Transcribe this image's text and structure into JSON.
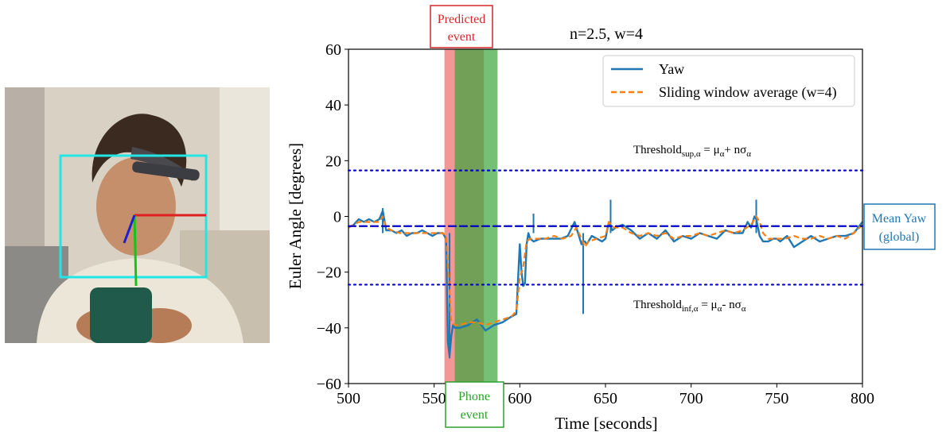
{
  "photo": {
    "alt": "Person wearing EEG headband looking down at a phone with head-pose axes and face bounding box",
    "colors": {
      "face_box": "#22e6e6",
      "axis_x": "#e02020",
      "axis_y": "#16c416",
      "axis_z": "#1f1fd0",
      "phone": "#1f5a4a"
    }
  },
  "chart_data": {
    "type": "line",
    "title": "n=2.5, w=4",
    "xlabel": "Time [seconds]",
    "ylabel": "Euler Angle [degrees]",
    "xlim": [
      500,
      800
    ],
    "ylim": [
      -60,
      60
    ],
    "xticks": [
      500,
      550,
      600,
      650,
      700,
      750,
      800
    ],
    "xtick_labels": [
      "500",
      "550",
      "600",
      "650",
      "700",
      "750",
      "800"
    ],
    "yticks": [
      -60,
      -40,
      -20,
      0,
      20,
      40,
      60
    ],
    "ytick_labels": [
      "−60",
      "−40",
      "−20",
      "0",
      "20",
      "40",
      "60"
    ],
    "grid": false,
    "legend_position": "top-right",
    "series": [
      {
        "name": "Yaw",
        "style": "solid",
        "color": "#1f77b4",
        "x": [
          500,
          503,
          506,
          509,
          512,
          515,
          518,
          520,
          522,
          525,
          528,
          531,
          534,
          537,
          540,
          543,
          546,
          549,
          552,
          555,
          557,
          558,
          559,
          560,
          561,
          562,
          565,
          570,
          575,
          580,
          585,
          590,
          595,
          598,
          600,
          601,
          602,
          603,
          604,
          605,
          606,
          608,
          612,
          616,
          620,
          624,
          628,
          632,
          636,
          637,
          638,
          639,
          640,
          642,
          645,
          648,
          650,
          652,
          654,
          656,
          660,
          665,
          670,
          675,
          680,
          685,
          690,
          695,
          700,
          705,
          710,
          715,
          720,
          725,
          730,
          733,
          735,
          737,
          738,
          740,
          742,
          745,
          748,
          750,
          752,
          756,
          760,
          765,
          770,
          775,
          780,
          785,
          790,
          795,
          800
        ],
        "y": [
          -4,
          -3,
          -1,
          -2,
          -1,
          -2,
          -1,
          2,
          -5,
          -5,
          -6,
          -5,
          -7,
          -6,
          -6,
          -5,
          -6,
          -7,
          -6,
          -6,
          -8,
          -45,
          -50,
          -43,
          -39,
          -40,
          -40,
          -39,
          -37,
          -41,
          -39,
          -38,
          -36,
          -35,
          -10,
          -20,
          -25,
          -24,
          -10,
          -6,
          -8,
          -9,
          -8,
          -8,
          -8,
          -8,
          -7,
          -2,
          -10,
          -9,
          -9,
          -10,
          -9,
          -7,
          -8,
          -9,
          -8,
          -2,
          -5,
          -4,
          -3,
          -5,
          -8,
          -6,
          -8,
          -5,
          -9,
          -7,
          -8,
          -6,
          -7,
          -8,
          -5,
          -6,
          -6,
          -2,
          -4,
          0,
          -1,
          -7,
          -9,
          -9,
          -8,
          -8,
          -9,
          -7,
          -11,
          -9,
          -7,
          -9,
          -8,
          -7,
          -7,
          -6,
          -2
        ],
        "spikes": [
          {
            "x": 520,
            "y": 3
          },
          {
            "x": 559,
            "y": -51
          },
          {
            "x": 608,
            "y": 1
          },
          {
            "x": 637,
            "y": -35
          },
          {
            "x": 653,
            "y": 6
          },
          {
            "x": 738,
            "y": 6
          }
        ]
      },
      {
        "name": "Sliding window average (w=4)",
        "style": "dashed",
        "color": "#ff7f0e",
        "x": [
          500,
          506,
          512,
          518,
          520,
          522,
          525,
          530,
          535,
          540,
          545,
          550,
          555,
          557,
          560,
          562,
          565,
          570,
          575,
          580,
          585,
          590,
          595,
          598,
          600,
          602,
          604,
          606,
          610,
          615,
          620,
          625,
          630,
          633,
          636,
          638,
          640,
          645,
          650,
          652,
          655,
          660,
          665,
          670,
          675,
          680,
          685,
          690,
          695,
          700,
          705,
          710,
          715,
          720,
          725,
          730,
          735,
          738,
          740,
          742,
          745,
          750,
          755,
          760,
          765,
          770,
          775,
          780,
          785,
          790,
          795,
          800
        ],
        "y": [
          -4,
          -2,
          -2,
          -2,
          0,
          -4,
          -5,
          -6,
          -6,
          -6,
          -6,
          -6,
          -6,
          -7,
          -38,
          -39,
          -39,
          -38,
          -38,
          -39,
          -38,
          -37,
          -36,
          -34,
          -22,
          -18,
          -9,
          -8,
          -8,
          -8,
          -7,
          -8,
          -7,
          -4,
          -8,
          -11,
          -9,
          -8,
          -7,
          -2,
          -4,
          -4,
          -6,
          -7,
          -6,
          -7,
          -6,
          -8,
          -7,
          -7,
          -6,
          -7,
          -6,
          -5,
          -6,
          -5,
          -3,
          0,
          -2,
          -6,
          -8,
          -8,
          -8,
          -7,
          -8,
          -8,
          -7,
          -8,
          -7,
          -8,
          -6,
          -3
        ]
      }
    ],
    "reference_lines": [
      {
        "name": "Threshold sup",
        "y": 16.5,
        "style": "dotted",
        "color": "#0000cd"
      },
      {
        "name": "Mean Yaw (global)",
        "y": -3.5,
        "style": "dashed",
        "color": "#0000cd"
      },
      {
        "name": "Threshold inf",
        "y": -24.5,
        "style": "dotted",
        "color": "#0000cd"
      }
    ],
    "bands": [
      {
        "name": "Predicted event",
        "x_start": 556,
        "x_end": 579,
        "color": "#f0686a",
        "opacity": 0.7
      },
      {
        "name": "Phone event",
        "x_start": 562,
        "x_end": 587,
        "color": "#3aa53a",
        "opacity": 0.7
      }
    ],
    "annotations": {
      "threshold_sup": {
        "base": "Threshold",
        "sub1": "sup,α",
        "eq": " = μ",
        "sub2": "α",
        "rest": "+ nσ",
        "sub3": "α"
      },
      "threshold_inf": {
        "base": "Threshold",
        "sub1": "inf,α",
        "eq": " = μ",
        "sub2": "α",
        "rest": "- nσ",
        "sub3": "α"
      },
      "predicted_box": {
        "line1": "Predicted",
        "line2": "event",
        "color": "#d62728"
      },
      "phone_box": {
        "line1": "Phone",
        "line2": "event",
        "color": "#2ca02c"
      },
      "mean_box": {
        "line1": "Mean Yaw",
        "line2": "(global)",
        "color": "#1f77b4"
      }
    }
  }
}
